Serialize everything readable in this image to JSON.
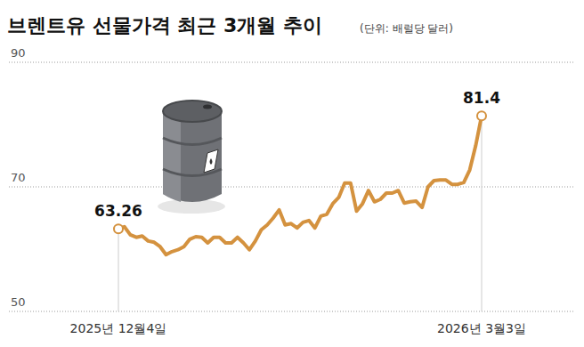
{
  "chart_data": {
    "type": "line",
    "title": "브렌트유 선물가격 최근 3개월 추이",
    "subtitle": "(단위: 배럴당 달러)",
    "categories": [
      "2025년 12월4일",
      null,
      null,
      null,
      null,
      null,
      null,
      null,
      null,
      null,
      null,
      null,
      null,
      null,
      null,
      null,
      null,
      null,
      null,
      null,
      null,
      null,
      null,
      null,
      null,
      null,
      null,
      null,
      null,
      null,
      null,
      null,
      null,
      null,
      null,
      null,
      null,
      null,
      null,
      null,
      null,
      null,
      null,
      null,
      null,
      null,
      null,
      null,
      null,
      null,
      null,
      null,
      null,
      null,
      null,
      null,
      null,
      null,
      null,
      null,
      null,
      "2026년 3월3일"
    ],
    "values": [
      63.26,
      63.6,
      62.3,
      61.9,
      62.1,
      61.3,
      61.1,
      60.4,
      59.1,
      59.6,
      59.9,
      60.4,
      61.6,
      62.0,
      61.9,
      61.0,
      61.9,
      61.9,
      61.0,
      61.0,
      61.9,
      61.0,
      59.9,
      61.3,
      63.1,
      63.9,
      65.0,
      66.3,
      63.9,
      64.1,
      63.4,
      64.3,
      64.6,
      63.4,
      65.3,
      65.6,
      67.3,
      68.3,
      70.6,
      70.6,
      66.1,
      67.3,
      69.4,
      67.6,
      68.0,
      69.0,
      69.0,
      69.4,
      67.4,
      67.6,
      67.7,
      66.7,
      70.0,
      71.0,
      71.1,
      71.1,
      70.4,
      70.4,
      70.7,
      72.7,
      76.6,
      81.4
    ],
    "value_labels": [
      "63.26",
      null,
      null,
      null,
      null,
      null,
      null,
      null,
      null,
      null,
      null,
      null,
      null,
      null,
      null,
      null,
      null,
      null,
      null,
      null,
      null,
      null,
      null,
      null,
      null,
      null,
      null,
      null,
      null,
      null,
      null,
      null,
      null,
      null,
      null,
      null,
      null,
      null,
      null,
      null,
      null,
      null,
      null,
      null,
      null,
      null,
      null,
      null,
      null,
      null,
      null,
      null,
      null,
      null,
      null,
      null,
      null,
      null,
      null,
      null,
      null,
      "81.4"
    ],
    "color": "#d4923f",
    "ylim": [
      50,
      90
    ],
    "yticks": [
      50,
      70,
      90
    ],
    "grid": true
  }
}
